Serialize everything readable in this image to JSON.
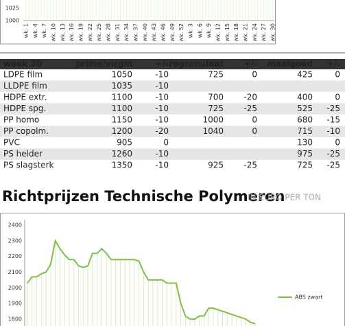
{
  "top_chart": {
    "ylim": [
      1000,
      1025
    ],
    "yticks": [
      1000,
      1025
    ],
    "x_labels": [
      "wk. 1",
      "wk. 4",
      "wk. 7",
      "wk. 10",
      "wk. 13",
      "wk. 16",
      "wk. 19",
      "wk. 22",
      "wk. 25",
      "wk. 28",
      "wk. 31",
      "wk. 34",
      "wk. 37",
      "wk. 40",
      "wk. 43",
      "wk. 46",
      "wk. 49",
      "wk. 52",
      "wk. 3",
      "wk. 6",
      "wk. 9",
      "wk. 12",
      "wk. 15",
      "wk. 18",
      "wk. 21",
      "wk. 24",
      "wk. 27",
      "wk. 30"
    ]
  },
  "table": {
    "header": [
      "week 30",
      "prime/virgin",
      "+/-",
      "regranulaat",
      "+/-",
      "maalgoed",
      "+/-"
    ],
    "rows": [
      [
        "LDPE film",
        1050,
        -10,
        725,
        0,
        425,
        0
      ],
      [
        "LLDPE film",
        1035,
        -10,
        null,
        null,
        null,
        null
      ],
      [
        "HDPE extr.",
        1100,
        -10,
        700,
        -20,
        400,
        0
      ],
      [
        "HDPE spg.",
        1100,
        -10,
        725,
        -25,
        525,
        -25
      ],
      [
        "PP homo",
        1150,
        -10,
        1000,
        0,
        680,
        -15
      ],
      [
        "PP copolm.",
        1200,
        -20,
        1040,
        0,
        715,
        -10
      ],
      [
        "PVC",
        905,
        0,
        null,
        null,
        130,
        0
      ],
      [
        "PS helder",
        1260,
        -10,
        null,
        null,
        975,
        -25
      ],
      [
        "PS slagsterk",
        1350,
        -10,
        925,
        -25,
        725,
        -25
      ]
    ]
  },
  "title": "Richtprijzen Technische Polymeren",
  "subtitle": "IN EURO PER TON",
  "chart_data": {
    "type": "line",
    "ylim": [
      1750,
      2400
    ],
    "yticks": [
      1800,
      1900,
      2000,
      2100,
      2200,
      2300,
      2400
    ],
    "series": [
      {
        "name": "ABS zwart",
        "color": "#7dc142",
        "values": [
          2030,
          2070,
          2070,
          2090,
          2100,
          2150,
          2300,
          2250,
          2210,
          2180,
          2180,
          2140,
          2130,
          2140,
          2220,
          2220,
          2250,
          2220,
          2180,
          2180,
          2180,
          2180,
          2180,
          2180,
          2170,
          2100,
          2050,
          2050,
          2050,
          2050,
          2030,
          2030,
          2030,
          1900,
          1820,
          1800,
          1800,
          1820,
          1820,
          1870,
          1870,
          1860,
          1850,
          1840,
          1830,
          1820,
          1810,
          1800,
          1780,
          1770
        ]
      }
    ]
  }
}
